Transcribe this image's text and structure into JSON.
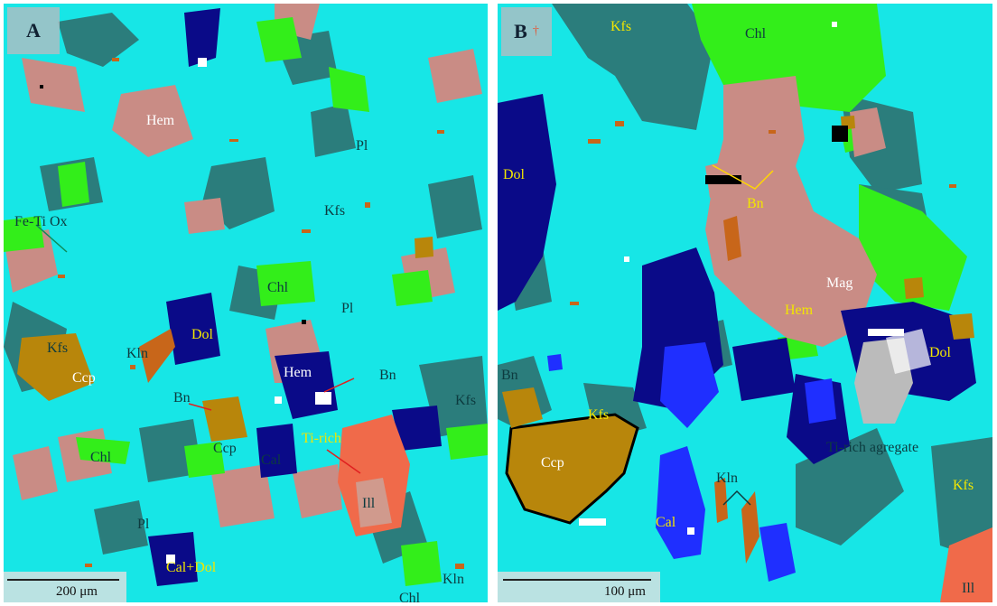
{
  "colors": {
    "plagioclase": "#17e6e6",
    "k_feldspar": "#2b7d7c",
    "hematite": "#c98c85",
    "chlorite": "#33ee1a",
    "dolomite": "#0a0a88",
    "calcite": "#1f2fff",
    "chalcopyrite": "#b8860b",
    "illite": "#f06a4a",
    "oxide": "#c8661a",
    "void": "#000000",
    "white": "#ffffff",
    "gray": "#bbbbbb"
  },
  "panelA": {
    "tag": "A",
    "labels": {
      "hem1": "Hem",
      "pl1": "Pl",
      "kfs1": "Kfs",
      "fe_ti_ox": "Fe-Ti Ox",
      "chl1": "Chl",
      "pl2": "Pl",
      "kfs2": "Kfs",
      "kln1": "Kln",
      "dol1": "Dol",
      "ccp1": "Ccp",
      "hem2": "Hem",
      "bn1": "Bn",
      "bn2": "Bn",
      "kfs3": "Kfs",
      "ccp2": "Ccp",
      "ti_rich": "Ti-rich",
      "cal1": "Cal",
      "chl2": "Chl",
      "ill1": "Ill",
      "pl3": "Pl",
      "cal_dol": "Cal+Dol",
      "kln2": "Kln",
      "chl3": "Chl"
    },
    "scale": "200 μm"
  },
  "panelB": {
    "tag": "B",
    "tag_sub": "†",
    "labels": {
      "kfs1": "Kfs",
      "chl1": "Chl",
      "dol1": "Dol",
      "bn1": "Bn",
      "mag": "Mag",
      "hem": "Hem",
      "dol2": "Dol",
      "bn2": "Bn",
      "kfs2": "Kfs",
      "ti_agg": "Ti-rich agregate",
      "ccp": "Ccp",
      "kln": "Kln",
      "cal": "Cal",
      "kfs3": "Kfs",
      "ill": "Ill"
    },
    "scale": "100 μm"
  }
}
